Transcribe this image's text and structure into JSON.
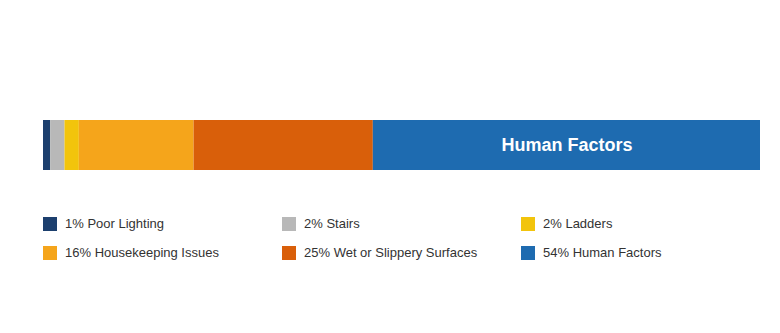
{
  "chart_data": {
    "type": "bar",
    "orientation": "horizontal",
    "stacked": true,
    "categories": [
      null
    ],
    "series": [
      {
        "name": "1% Poor Lighting",
        "color": "#1c3f6e",
        "values": [
          1
        ]
      },
      {
        "name": "2% Stairs",
        "color": "#b8b8b8",
        "values": [
          2
        ]
      },
      {
        "name": "2% Ladders",
        "color": "#f2c40c",
        "values": [
          2
        ]
      },
      {
        "name": "16% Housekeeping Issues",
        "color": "#f5a51b",
        "values": [
          16
        ]
      },
      {
        "name": "25% Wet or Slippery Surfaces",
        "color": "#d95f0a",
        "values": [
          25
        ]
      },
      {
        "name": "54% Human Factors",
        "color": "#1e6bb0",
        "values": [
          54
        ]
      }
    ],
    "annotations": [
      {
        "text": "Human Factors",
        "series": "54% Human Factors"
      }
    ],
    "xlim": [
      0,
      100
    ],
    "tick_labels": false,
    "grid": false,
    "legend": "bottom"
  }
}
